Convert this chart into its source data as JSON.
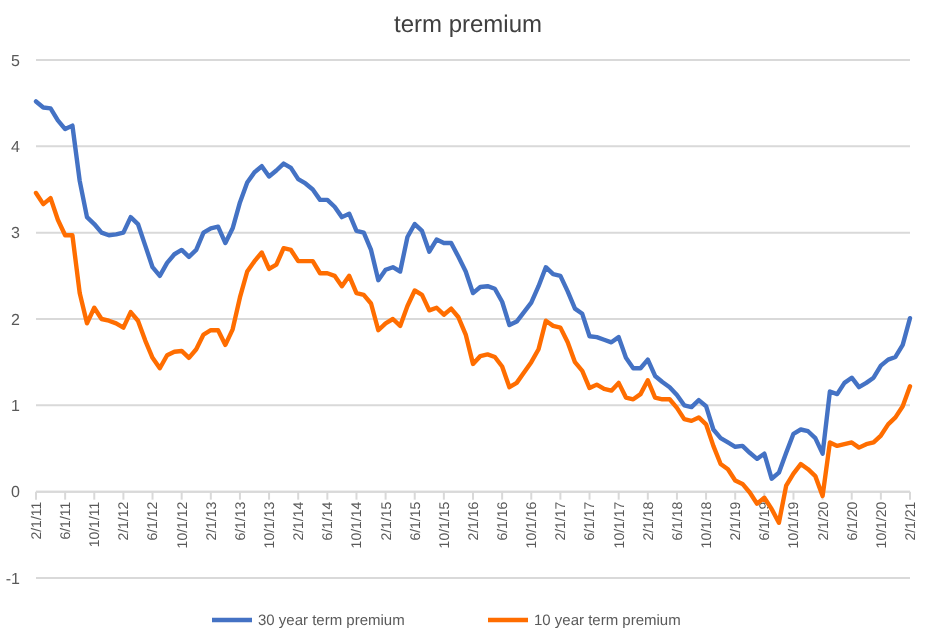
{
  "chart_data": {
    "type": "line",
    "title": "term premium",
    "categories": [
      "2/1/11",
      null,
      null,
      null,
      "6/1/11",
      null,
      null,
      null,
      "10/1/11",
      null,
      null,
      null,
      "2/1/12",
      null,
      null,
      null,
      "6/1/12",
      null,
      null,
      null,
      "10/1/12",
      null,
      null,
      null,
      "2/1/13",
      null,
      null,
      null,
      "6/1/13",
      null,
      null,
      null,
      "10/1/13",
      null,
      null,
      null,
      "2/1/14",
      null,
      null,
      null,
      "6/1/14",
      null,
      null,
      null,
      "10/1/14",
      null,
      null,
      null,
      "2/1/15",
      null,
      null,
      null,
      "6/1/15",
      null,
      null,
      null,
      "10/1/15",
      null,
      null,
      null,
      "2/1/16",
      null,
      null,
      null,
      "6/1/16",
      null,
      null,
      null,
      "10/1/16",
      null,
      null,
      null,
      "2/1/17",
      null,
      null,
      null,
      "6/1/17",
      null,
      null,
      null,
      "10/1/17",
      null,
      null,
      null,
      "2/1/18",
      null,
      null,
      null,
      "6/1/18",
      null,
      null,
      null,
      "10/1/18",
      null,
      null,
      null,
      "2/1/19",
      null,
      null,
      null,
      "6/1/19",
      null,
      null,
      null,
      "10/1/19",
      null,
      null,
      null,
      "2/1/20",
      null,
      null,
      null,
      "6/1/20",
      null,
      null,
      null,
      "10/1/20",
      null,
      null,
      null,
      "2/1/21"
    ],
    "series": [
      {
        "name": "30 year term premium",
        "color": "#4472c4",
        "values": [
          4.52,
          4.45,
          4.44,
          4.3,
          4.2,
          4.24,
          3.6,
          3.18,
          3.1,
          3.0,
          2.97,
          2.98,
          3.0,
          3.18,
          3.1,
          2.85,
          2.6,
          2.5,
          2.65,
          2.75,
          2.8,
          2.72,
          2.8,
          3.0,
          3.05,
          3.07,
          2.88,
          3.05,
          3.35,
          3.58,
          3.7,
          3.77,
          3.65,
          3.72,
          3.8,
          3.75,
          3.62,
          3.57,
          3.5,
          3.38,
          3.38,
          3.3,
          3.18,
          3.22,
          3.02,
          3.0,
          2.8,
          2.45,
          2.57,
          2.6,
          2.55,
          2.95,
          3.1,
          3.02,
          2.78,
          2.92,
          2.88,
          2.88,
          2.72,
          2.55,
          2.3,
          2.37,
          2.38,
          2.35,
          2.2,
          1.93,
          1.97,
          2.08,
          2.19,
          2.38,
          2.6,
          2.52,
          2.5,
          2.32,
          2.12,
          2.06,
          1.8,
          1.79,
          1.76,
          1.73,
          1.79,
          1.55,
          1.43,
          1.43,
          1.53,
          1.34,
          1.27,
          1.21,
          1.12,
          1.0,
          0.98,
          1.06,
          0.99,
          0.72,
          0.62,
          0.57,
          0.52,
          0.53,
          0.45,
          0.38,
          0.44,
          0.15,
          0.22,
          0.45,
          0.67,
          0.72,
          0.7,
          0.62,
          0.44,
          1.16,
          1.13,
          1.26,
          1.32,
          1.21,
          1.26,
          1.32,
          1.46,
          1.53,
          1.56,
          1.7,
          2.01
        ]
      },
      {
        "name": "10 year term premium",
        "color": "#ff6d00",
        "values": [
          3.46,
          3.33,
          3.4,
          3.15,
          2.97,
          2.97,
          2.3,
          1.95,
          2.13,
          2.0,
          1.98,
          1.95,
          1.9,
          2.08,
          1.98,
          1.75,
          1.55,
          1.43,
          1.58,
          1.62,
          1.63,
          1.55,
          1.65,
          1.82,
          1.87,
          1.87,
          1.7,
          1.88,
          2.25,
          2.55,
          2.67,
          2.77,
          2.58,
          2.63,
          2.82,
          2.8,
          2.67,
          2.67,
          2.67,
          2.53,
          2.53,
          2.5,
          2.38,
          2.5,
          2.3,
          2.28,
          2.18,
          1.87,
          1.95,
          2.0,
          1.92,
          2.15,
          2.33,
          2.28,
          2.1,
          2.13,
          2.05,
          2.12,
          2.02,
          1.82,
          1.48,
          1.57,
          1.59,
          1.56,
          1.45,
          1.21,
          1.26,
          1.38,
          1.5,
          1.65,
          1.98,
          1.92,
          1.9,
          1.73,
          1.5,
          1.4,
          1.2,
          1.24,
          1.19,
          1.17,
          1.26,
          1.09,
          1.07,
          1.13,
          1.29,
          1.09,
          1.07,
          1.07,
          0.97,
          0.84,
          0.82,
          0.86,
          0.78,
          0.53,
          0.32,
          0.26,
          0.13,
          0.09,
          -0.01,
          -0.14,
          -0.07,
          -0.2,
          -0.36,
          0.07,
          0.21,
          0.32,
          0.26,
          0.18,
          -0.05,
          0.57,
          0.53,
          0.55,
          0.57,
          0.51,
          0.55,
          0.57,
          0.65,
          0.78,
          0.86,
          0.99,
          1.22
        ]
      }
    ],
    "ylim": [
      -1,
      5
    ],
    "yticks": [
      -1,
      0,
      1,
      2,
      3,
      4,
      5
    ],
    "grid": "y",
    "legend": "bottom",
    "marker": "none",
    "line_style": "solid"
  }
}
